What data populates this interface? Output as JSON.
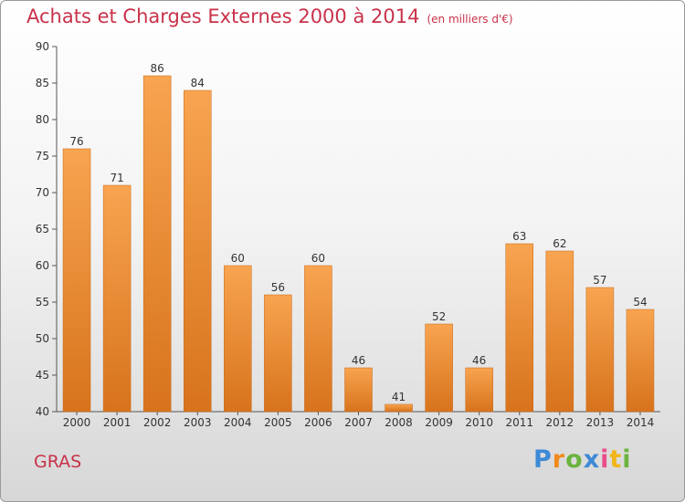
{
  "chart_data": {
    "type": "bar",
    "title": "Achats et Charges Externes 2000 à 2014",
    "subtitle": "(en milliers d'€)",
    "categories": [
      "2000",
      "2001",
      "2002",
      "2003",
      "2004",
      "2005",
      "2006",
      "2007",
      "2008",
      "2009",
      "2010",
      "2011",
      "2012",
      "2013",
      "2014"
    ],
    "values": [
      76,
      71,
      86,
      84,
      60,
      56,
      60,
      46,
      41,
      52,
      46,
      63,
      62,
      57,
      54
    ],
    "ylim": [
      40,
      90
    ],
    "yticks": [
      40,
      45,
      50,
      55,
      60,
      65,
      70,
      75,
      80,
      85,
      90
    ],
    "grid": false,
    "bar_color": "#f08a2a"
  },
  "footer": {
    "commune": "GRAS",
    "logo": {
      "p": "P",
      "r": "r",
      "o": "o",
      "x": "x",
      "i1": "i",
      "t": "t",
      "i2": "i"
    }
  }
}
